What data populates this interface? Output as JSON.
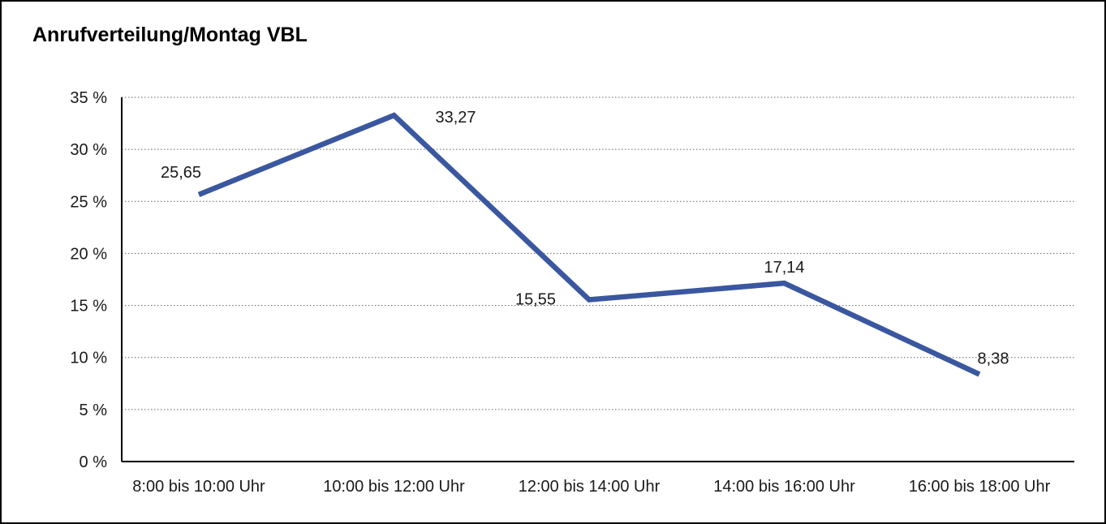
{
  "window": {
    "background_color": "#ffffff",
    "border_color": "#000000"
  },
  "chart_data": {
    "type": "line",
    "title": "Anrufverteilung/Montag VBL",
    "categories": [
      "8:00 bis 10:00 Uhr",
      "10:00 bis 12:00 Uhr",
      "12:00 bis 14:00 Uhr",
      "14:00 bis 16:00 Uhr",
      "16:00 bis 18:00 Uhr"
    ],
    "values": [
      25.65,
      33.27,
      15.55,
      17.14,
      8.38
    ],
    "value_labels": [
      "25,65",
      "33,27",
      "15,55",
      "17,14",
      "8,38"
    ],
    "xlabel": "",
    "ylabel": "",
    "ylim": [
      0,
      35
    ],
    "ytick_step": 5,
    "yticks": [
      0,
      5,
      10,
      15,
      20,
      25,
      30,
      35
    ],
    "ytick_labels": [
      "0 %",
      "5 %",
      "10 %",
      "15 %",
      "20 %",
      "25 %",
      "30 %",
      "35 %"
    ],
    "grid": "horizontal-dotted",
    "legend": "none",
    "line_color": "#3a57a0",
    "gridline_color": "#666666",
    "axis_color": "#000000",
    "text_color": "#1a1a1a"
  }
}
